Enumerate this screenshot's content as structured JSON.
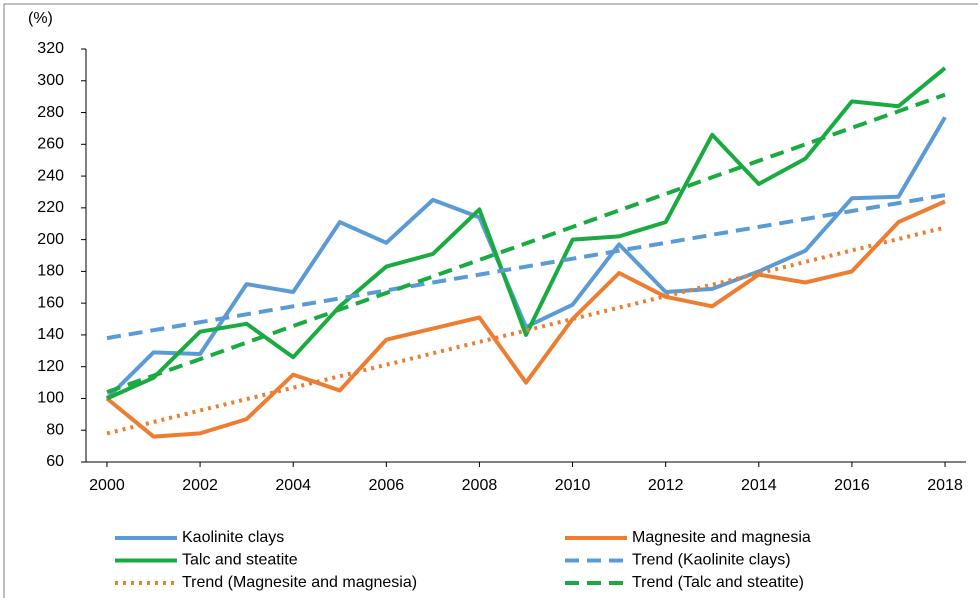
{
  "chart_data": {
    "type": "line",
    "y_label": "(%)",
    "x": [
      2000,
      2001,
      2002,
      2003,
      2004,
      2005,
      2006,
      2007,
      2008,
      2009,
      2010,
      2011,
      2012,
      2013,
      2014,
      2015,
      2016,
      2017,
      2018
    ],
    "series": [
      {
        "name": "Kaolinite clays",
        "color": "#5b9bd5",
        "style": "solid",
        "values": [
          100,
          129,
          128,
          172,
          167,
          211,
          198,
          225,
          214,
          145,
          159,
          197,
          167,
          169,
          180,
          193,
          226,
          227,
          277
        ]
      },
      {
        "name": "Magnesite and magnesia",
        "color": "#ed7d31",
        "style": "solid",
        "values": [
          100,
          76,
          78,
          87,
          115,
          105,
          137,
          144,
          151,
          110,
          150,
          179,
          164,
          158,
          178,
          173,
          180,
          211,
          224
        ]
      },
      {
        "name": "Talc and steatite",
        "color": "#1aab40",
        "style": "solid",
        "values": [
          100,
          113,
          142,
          147,
          126,
          158,
          183,
          191,
          219,
          140,
          200,
          202,
          211,
          266,
          235,
          251,
          287,
          284,
          308
        ]
      },
      {
        "name": "Trend (Kaolinite clays)",
        "color": "#5b9bd5",
        "style": "dash",
        "values": [
          138,
          143,
          148,
          153,
          158,
          163,
          168,
          173,
          178,
          183,
          188,
          193,
          198,
          203,
          208,
          213,
          218,
          223,
          228
        ]
      },
      {
        "name": "Trend (Magnesite and magnesia)",
        "color": "#ed7d31",
        "style": "dot",
        "values": [
          78,
          85.2,
          92.4,
          99.6,
          106.8,
          114,
          121.2,
          128.4,
          135.6,
          142.8,
          150,
          157.2,
          164.4,
          171.6,
          178.8,
          186,
          193.2,
          200.4,
          207.6
        ]
      },
      {
        "name": "Trend (Talc and steatite)",
        "color": "#1aab40",
        "style": "dash",
        "values": [
          104,
          114.4,
          124.8,
          135.2,
          145.6,
          156,
          166.4,
          176.8,
          187.2,
          197.6,
          208,
          218.4,
          228.8,
          239.2,
          249.6,
          260,
          270.4,
          280.8,
          291.2
        ]
      }
    ],
    "xlim": [
      1999.55,
      2018.45
    ],
    "xticks": [
      2000,
      2002,
      2004,
      2006,
      2008,
      2010,
      2012,
      2014,
      2016,
      2018
    ],
    "ylim": [
      60,
      320
    ],
    "yticks": [
      60,
      80,
      100,
      120,
      140,
      160,
      180,
      200,
      220,
      240,
      260,
      280,
      300,
      320
    ],
    "legend": "bottom"
  }
}
